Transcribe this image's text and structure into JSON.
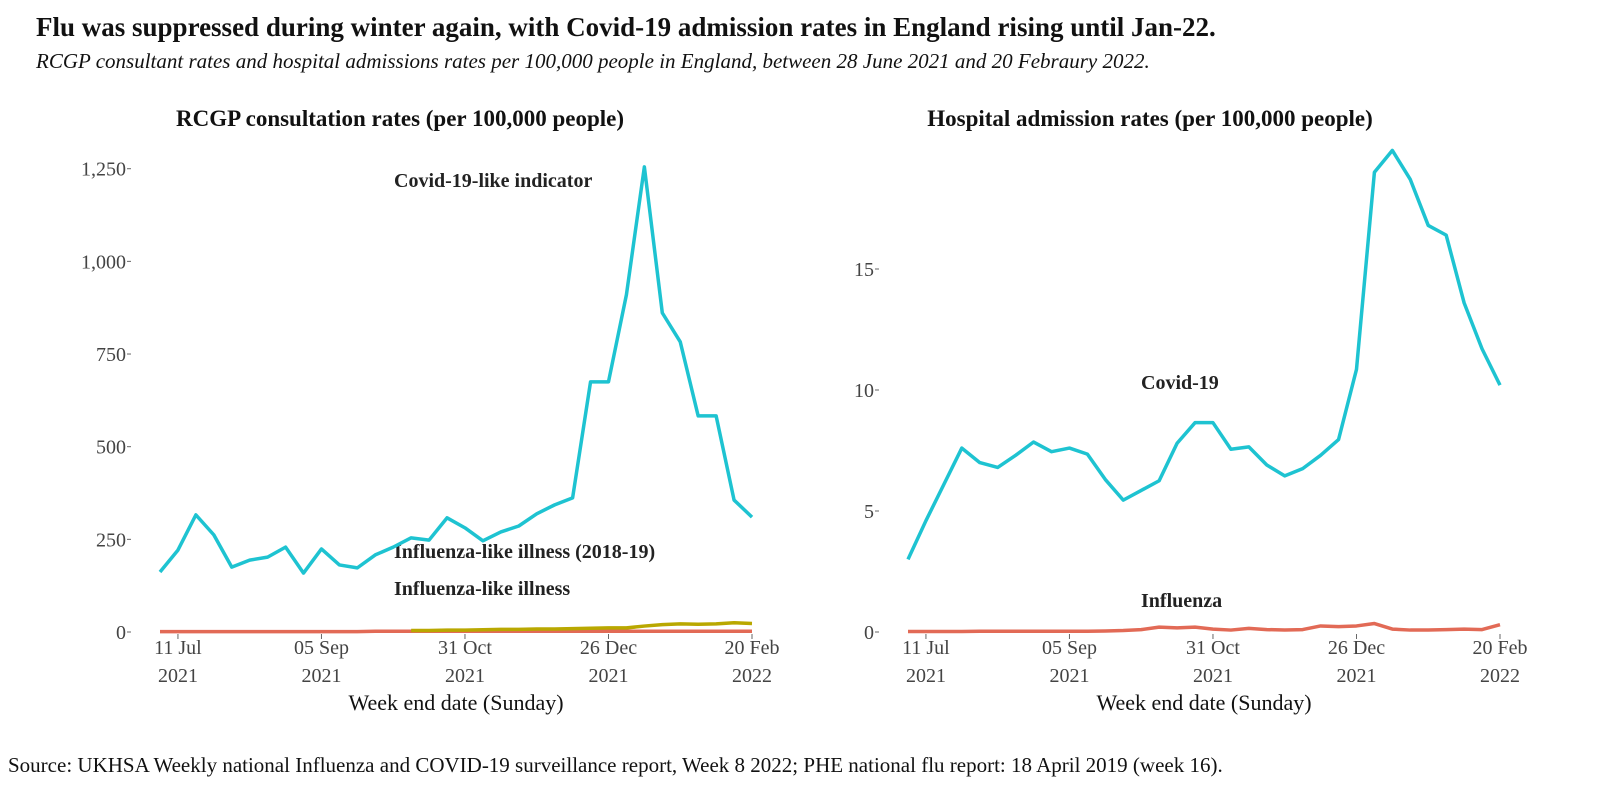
{
  "title": "Flu was suppressed during winter again, with Covid-19 admission rates in England rising until Jan-22.",
  "subtitle": "RCGP consultant rates and hospital admissions rates per 100,000 people in England, between 28 June 2021 and 20 Febraury 2022.",
  "source": "Source: UKHSA Weekly national Influenza and COVID-19 surveillance report, Week 8 2022; PHE national flu report: 18 April 2019 (week 16).",
  "chart_data": [
    {
      "type": "line",
      "title": "RCGP consultation rates (per 100,000 people)",
      "x_label": "Week end date (Sunday)",
      "x": [
        "2021-07-04",
        "2021-07-11",
        "2021-07-18",
        "2021-07-25",
        "2021-08-01",
        "2021-08-08",
        "2021-08-15",
        "2021-08-22",
        "2021-08-29",
        "2021-09-05",
        "2021-09-12",
        "2021-09-19",
        "2021-09-26",
        "2021-10-03",
        "2021-10-10",
        "2021-10-17",
        "2021-10-24",
        "2021-10-31",
        "2021-11-07",
        "2021-11-14",
        "2021-11-21",
        "2021-11-28",
        "2021-12-05",
        "2021-12-12",
        "2021-12-19",
        "2021-12-26",
        "2022-01-02",
        "2022-01-09",
        "2022-01-16",
        "2022-01-23",
        "2022-01-30",
        "2022-02-06",
        "2022-02-13",
        "2022-02-20"
      ],
      "xlim": [
        "2021-07-04",
        "2022-02-20"
      ],
      "xticks": [
        {
          "value": "2021-07-11",
          "label": "11 Jul\n2021"
        },
        {
          "value": "2021-09-05",
          "label": "05 Sep\n2021"
        },
        {
          "value": "2021-10-31",
          "label": "31 Oct\n2021"
        },
        {
          "value": "2021-12-26",
          "label": "26 Dec\n2021"
        },
        {
          "value": "2022-02-20",
          "label": "20 Feb\n2022"
        }
      ],
      "ylim": [
        0,
        1260
      ],
      "yticks": [
        0,
        250,
        500,
        750,
        {
          "value": 1000,
          "label": "1,000"
        },
        {
          "value": 1250,
          "label": "1,250"
        }
      ],
      "series": [
        {
          "name": "Influenza-like illness",
          "color": "#e26a56",
          "values": [
            1,
            1,
            1,
            1,
            1,
            1,
            1,
            1,
            1,
            1,
            1,
            1,
            2,
            2,
            2,
            2,
            2,
            2,
            2,
            2,
            2,
            2,
            2,
            2,
            2,
            2,
            2,
            2,
            2,
            2,
            2,
            2,
            2,
            2
          ]
        },
        {
          "name": "Influenza-like illness (2018-19)",
          "color": "#b9a800",
          "values": [
            null,
            null,
            null,
            null,
            null,
            null,
            null,
            null,
            null,
            null,
            null,
            null,
            null,
            null,
            4,
            4,
            5,
            5,
            6,
            7,
            7,
            8,
            8,
            9,
            10,
            11,
            11,
            16,
            20,
            22,
            21,
            22,
            25,
            23
          ]
        },
        {
          "name": "Covid-19-like indicator",
          "color": "#1ec3d1",
          "values": [
            162,
            221,
            316,
            262,
            175,
            194,
            202,
            229,
            159,
            224,
            181,
            173,
            208,
            229,
            254,
            248,
            308,
            281,
            246,
            270,
            286,
            319,
            343,
            362,
            675,
            675,
            910,
            1255,
            861,
            783,
            583,
            583,
            356,
            310
          ]
        }
      ]
    },
    {
      "type": "line",
      "title": "Hospital admission rates (per 100,000 people)",
      "x_label": "Week end date (Sunday)",
      "x": [
        "2021-07-04",
        "2021-07-11",
        "2021-07-18",
        "2021-07-25",
        "2021-08-01",
        "2021-08-08",
        "2021-08-15",
        "2021-08-22",
        "2021-08-29",
        "2021-09-05",
        "2021-09-12",
        "2021-09-19",
        "2021-09-26",
        "2021-10-03",
        "2021-10-10",
        "2021-10-17",
        "2021-10-24",
        "2021-10-31",
        "2021-11-07",
        "2021-11-14",
        "2021-11-21",
        "2021-11-28",
        "2021-12-05",
        "2021-12-12",
        "2021-12-19",
        "2021-12-26",
        "2022-01-02",
        "2022-01-09",
        "2022-01-16",
        "2022-01-23",
        "2022-01-30",
        "2022-02-06",
        "2022-02-13",
        "2022-02-20"
      ],
      "xlim": [
        "2021-07-04",
        "2022-02-20"
      ],
      "xticks": [
        {
          "value": "2021-07-11",
          "label": "11 Jul\n2021"
        },
        {
          "value": "2021-09-05",
          "label": "05 Sep\n2021"
        },
        {
          "value": "2021-10-31",
          "label": "31 Oct\n2021"
        },
        {
          "value": "2021-12-26",
          "label": "26 Dec\n2021"
        },
        {
          "value": "2022-02-20",
          "label": "20 Feb\n2022"
        }
      ],
      "ylim": [
        0,
        20
      ],
      "yticks": [
        0,
        5,
        10,
        15
      ],
      "series": [
        {
          "name": "Influenza",
          "color": "#e26a56",
          "values": [
            0.02,
            0.02,
            0.02,
            0.02,
            0.03,
            0.03,
            0.03,
            0.03,
            0.03,
            0.03,
            0.03,
            0.04,
            0.06,
            0.1,
            0.2,
            0.17,
            0.2,
            0.12,
            0.08,
            0.15,
            0.1,
            0.08,
            0.1,
            0.25,
            0.22,
            0.25,
            0.35,
            0.12,
            0.08,
            0.08,
            0.1,
            0.12,
            0.1,
            0.3
          ]
        },
        {
          "name": "Covid-19",
          "color": "#1ec3d1",
          "values": [
            3.0,
            4.6,
            6.1,
            7.6,
            7.0,
            6.8,
            7.3,
            7.85,
            7.45,
            7.6,
            7.35,
            6.3,
            5.45,
            5.85,
            6.25,
            7.8,
            8.65,
            8.65,
            7.55,
            7.65,
            6.9,
            6.45,
            6.75,
            7.3,
            7.95,
            10.85,
            19.0,
            19.9,
            18.7,
            16.8,
            16.4,
            13.6,
            11.7,
            10.2
          ]
        }
      ]
    }
  ]
}
